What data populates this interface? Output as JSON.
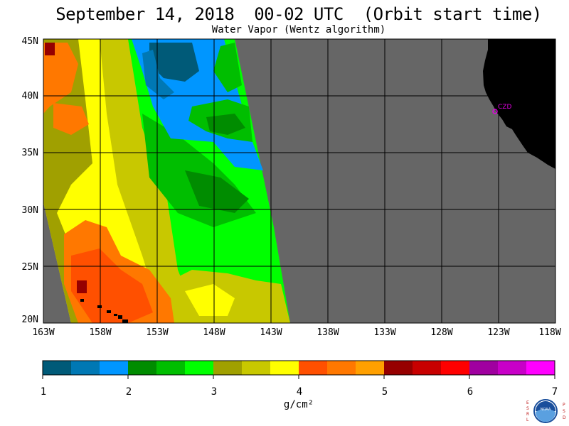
{
  "header": {
    "title": "September 14, 2018  00-02 UTC  (Orbit start time)",
    "subtitle": "Water Vapor (Wentz algorithm)"
  },
  "map": {
    "lat_labels": [
      "45N",
      "40N",
      "35N",
      "30N",
      "25N",
      "20N"
    ],
    "lon_labels": [
      "163W",
      "158W",
      "153W",
      "148W",
      "143W",
      "138W",
      "133W",
      "128W",
      "123W",
      "118W"
    ],
    "station_label": "CZD",
    "colors": {
      "nodata": "#666666",
      "land": "#000000",
      "grid": "#000000",
      "station": "#e000e0"
    }
  },
  "colorbar": {
    "tick_labels": [
      "1",
      "2",
      "3",
      "4",
      "5",
      "6",
      "7"
    ],
    "units": "g/cm²",
    "colors": [
      "#005a78",
      "#0078b4",
      "#0096ff",
      "#008c00",
      "#00be00",
      "#00ff00",
      "#a0a000",
      "#c8c800",
      "#ffff00",
      "#ff5000",
      "#ff7800",
      "#ffa000",
      "#960000",
      "#c80000",
      "#ff0000",
      "#a000a0",
      "#c800c8",
      "#ff00ff"
    ]
  },
  "logo": {
    "left_letters": [
      "E",
      "S",
      "R",
      "L"
    ],
    "right_letters": [
      "P",
      "S",
      "D"
    ],
    "center_text": "NOAA"
  }
}
